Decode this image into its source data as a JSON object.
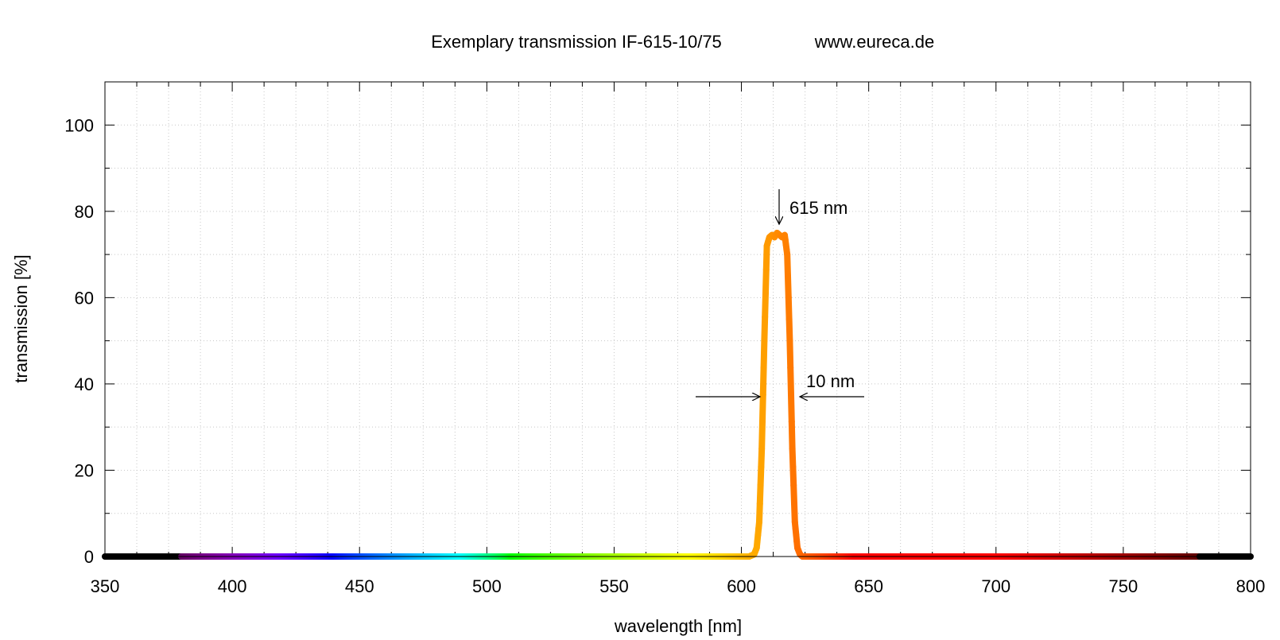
{
  "chart_data": {
    "type": "line",
    "title": "Exemplary transmission IF-615-10/75",
    "subtitle": "www.eureca.de",
    "xlabel": "wavelength [nm]",
    "ylabel": "transmission [%]",
    "xlim": [
      350,
      800
    ],
    "ylim": [
      0,
      110
    ],
    "xticks": [
      350,
      400,
      450,
      500,
      550,
      600,
      650,
      700,
      750,
      800
    ],
    "yticks": [
      0,
      20,
      40,
      60,
      80,
      100
    ],
    "x_minor_step": 12.5,
    "y_minor_step": 10,
    "grid": true,
    "legend": "none",
    "series": [
      {
        "x": [
          350,
          360,
          370,
          380,
          390,
          400,
          410,
          420,
          430,
          440,
          450,
          460,
          470,
          480,
          490,
          500,
          510,
          520,
          530,
          540,
          550,
          560,
          570,
          580,
          590,
          600,
          603,
          605,
          606,
          607,
          608,
          609,
          610,
          611,
          612,
          613,
          614,
          615,
          616,
          617,
          618,
          619,
          620,
          621,
          622,
          623,
          624,
          625,
          630,
          640,
          650,
          660,
          670,
          680,
          690,
          700,
          710,
          720,
          730,
          740,
          750,
          760,
          770,
          780,
          790,
          800
        ],
        "y": [
          0,
          0,
          0,
          0,
          0,
          0,
          0,
          0,
          0,
          0,
          0,
          0,
          0,
          0,
          0,
          0,
          0,
          0,
          0,
          0,
          0,
          0,
          0,
          0,
          0,
          0,
          0,
          0.5,
          2,
          8,
          25,
          50,
          72,
          74,
          74.5,
          74,
          75,
          74.5,
          74,
          74.5,
          70,
          50,
          25,
          8,
          2,
          0.5,
          0,
          0,
          0,
          0,
          0,
          0,
          0,
          0,
          0,
          0,
          0,
          0,
          0,
          0,
          0,
          0,
          0,
          0,
          0,
          0
        ]
      }
    ],
    "annotations": [
      {
        "text": "615 nm",
        "x": 615,
        "y": 80
      },
      {
        "text": "10 nm",
        "x": 610,
        "y": 37
      }
    ]
  }
}
